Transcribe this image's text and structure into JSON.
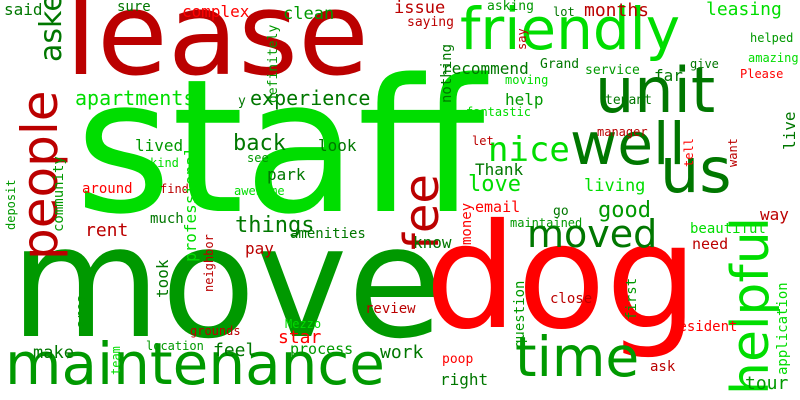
{
  "colors": {
    "bright_green": "#00dd00",
    "mid_green": "#009900",
    "dark_green": "#007700",
    "bright_red": "#ff0000",
    "dark_red": "#bb0000",
    "background": "#ffffff"
  },
  "words": [
    {
      "text": "staff",
      "color": "bright_green"
    },
    {
      "text": "move",
      "color": "mid_green"
    },
    {
      "text": "dog",
      "color": "bright_red"
    },
    {
      "text": "lease",
      "color": "dark_red"
    },
    {
      "text": "maintenance",
      "color": "mid_green"
    },
    {
      "text": "unit",
      "color": "dark_green"
    },
    {
      "text": "friendly",
      "color": "bright_green"
    },
    {
      "text": "well",
      "color": "dark_green"
    },
    {
      "text": "people",
      "color": "dark_red"
    },
    {
      "text": "helpful",
      "color": "bright_green"
    },
    {
      "text": "us",
      "color": "dark_green"
    },
    {
      "text": "fee",
      "color": "dark_red"
    },
    {
      "text": "moved",
      "color": "dark_green"
    },
    {
      "text": "time",
      "color": "mid_green"
    },
    {
      "text": "nice",
      "color": "bright_green"
    },
    {
      "text": "experience",
      "color": "dark_green"
    },
    {
      "text": "apartments",
      "color": "bright_green"
    },
    {
      "text": "back",
      "color": "dark_green"
    },
    {
      "text": "love",
      "color": "bright_green"
    },
    {
      "text": "good",
      "color": "mid_green"
    },
    {
      "text": "rent",
      "color": "dark_red"
    },
    {
      "text": "things",
      "color": "dark_green"
    },
    {
      "text": "said",
      "color": "dark_green"
    },
    {
      "text": "asked",
      "color": "dark_green"
    },
    {
      "text": "sure",
      "color": "dark_green"
    },
    {
      "text": "complex",
      "color": "bright_red"
    },
    {
      "text": "clean",
      "color": "mid_green"
    },
    {
      "text": "issue",
      "color": "dark_red"
    },
    {
      "text": "months",
      "color": "dark_red"
    },
    {
      "text": "leasing",
      "color": "bright_green"
    },
    {
      "text": "asking",
      "color": "mid_green"
    },
    {
      "text": "lot",
      "color": "dark_green"
    },
    {
      "text": "saying",
      "color": "dark_red"
    },
    {
      "text": "definitely",
      "color": "mid_green"
    },
    {
      "text": "recommend",
      "color": "dark_green"
    },
    {
      "text": "service",
      "color": "mid_green"
    },
    {
      "text": "Grand",
      "color": "dark_green"
    },
    {
      "text": "far",
      "color": "dark_green"
    },
    {
      "text": "give",
      "color": "dark_green"
    },
    {
      "text": "helped",
      "color": "mid_green"
    },
    {
      "text": "amazing",
      "color": "bright_green"
    },
    {
      "text": "Please",
      "color": "bright_red"
    },
    {
      "text": "moving",
      "color": "bright_green"
    },
    {
      "text": "help",
      "color": "mid_green"
    },
    {
      "text": "tenant",
      "color": "dark_green"
    },
    {
      "text": "fantastic",
      "color": "bright_green"
    },
    {
      "text": "nothing",
      "color": "dark_green"
    },
    {
      "text": "say",
      "color": "dark_red"
    },
    {
      "text": "y",
      "color": "dark_green"
    },
    {
      "text": "lived",
      "color": "mid_green"
    },
    {
      "text": "look",
      "color": "dark_green"
    },
    {
      "text": "let",
      "color": "dark_red"
    },
    {
      "text": "manager",
      "color": "dark_red"
    },
    {
      "text": "see",
      "color": "mid_green"
    },
    {
      "text": "kind",
      "color": "bright_green"
    },
    {
      "text": "park",
      "color": "dark_green"
    },
    {
      "text": "Thank",
      "color": "dark_green"
    },
    {
      "text": "around",
      "color": "bright_red"
    },
    {
      "text": "find",
      "color": "dark_red"
    },
    {
      "text": "awesome",
      "color": "bright_green"
    },
    {
      "text": "living",
      "color": "bright_green"
    },
    {
      "text": "tell",
      "color": "bright_red"
    },
    {
      "text": "want",
      "color": "dark_red"
    },
    {
      "text": "live",
      "color": "dark_green"
    },
    {
      "text": "community",
      "color": "mid_green"
    },
    {
      "text": "deposit",
      "color": "mid_green"
    },
    {
      "text": "much",
      "color": "dark_green"
    },
    {
      "text": "professional",
      "color": "bright_green"
    },
    {
      "text": "neighbor",
      "color": "dark_red"
    },
    {
      "text": "go",
      "color": "dark_green"
    },
    {
      "text": "email",
      "color": "bright_red"
    },
    {
      "text": "maintained",
      "color": "mid_green"
    },
    {
      "text": "way",
      "color": "dark_red"
    },
    {
      "text": "beautiful",
      "color": "bright_green"
    },
    {
      "text": "amenities",
      "color": "dark_green"
    },
    {
      "text": "pay",
      "color": "dark_red"
    },
    {
      "text": "know",
      "color": "dark_green"
    },
    {
      "text": "money",
      "color": "bright_red"
    },
    {
      "text": "need",
      "color": "dark_red"
    },
    {
      "text": "took",
      "color": "dark_green"
    },
    {
      "text": "area",
      "color": "mid_green"
    },
    {
      "text": "question",
      "color": "mid_green"
    },
    {
      "text": "first",
      "color": "mid_green"
    },
    {
      "text": "close",
      "color": "dark_red"
    },
    {
      "text": "review",
      "color": "dark_red"
    },
    {
      "text": "grounds",
      "color": "dark_red"
    },
    {
      "text": "Mezzo",
      "color": "bright_green"
    },
    {
      "text": "star",
      "color": "bright_red"
    },
    {
      "text": "team",
      "color": "bright_green"
    },
    {
      "text": "location",
      "color": "mid_green"
    },
    {
      "text": "make",
      "color": "dark_green"
    },
    {
      "text": "feel",
      "color": "dark_green"
    },
    {
      "text": "process",
      "color": "mid_green"
    },
    {
      "text": "work",
      "color": "dark_green"
    },
    {
      "text": "resident",
      "color": "bright_red"
    },
    {
      "text": "application",
      "color": "bright_green"
    },
    {
      "text": "poop",
      "color": "bright_red"
    },
    {
      "text": "right",
      "color": "dark_green"
    },
    {
      "text": "ask",
      "color": "dark_red"
    },
    {
      "text": "tour",
      "color": "mid_green"
    }
  ]
}
